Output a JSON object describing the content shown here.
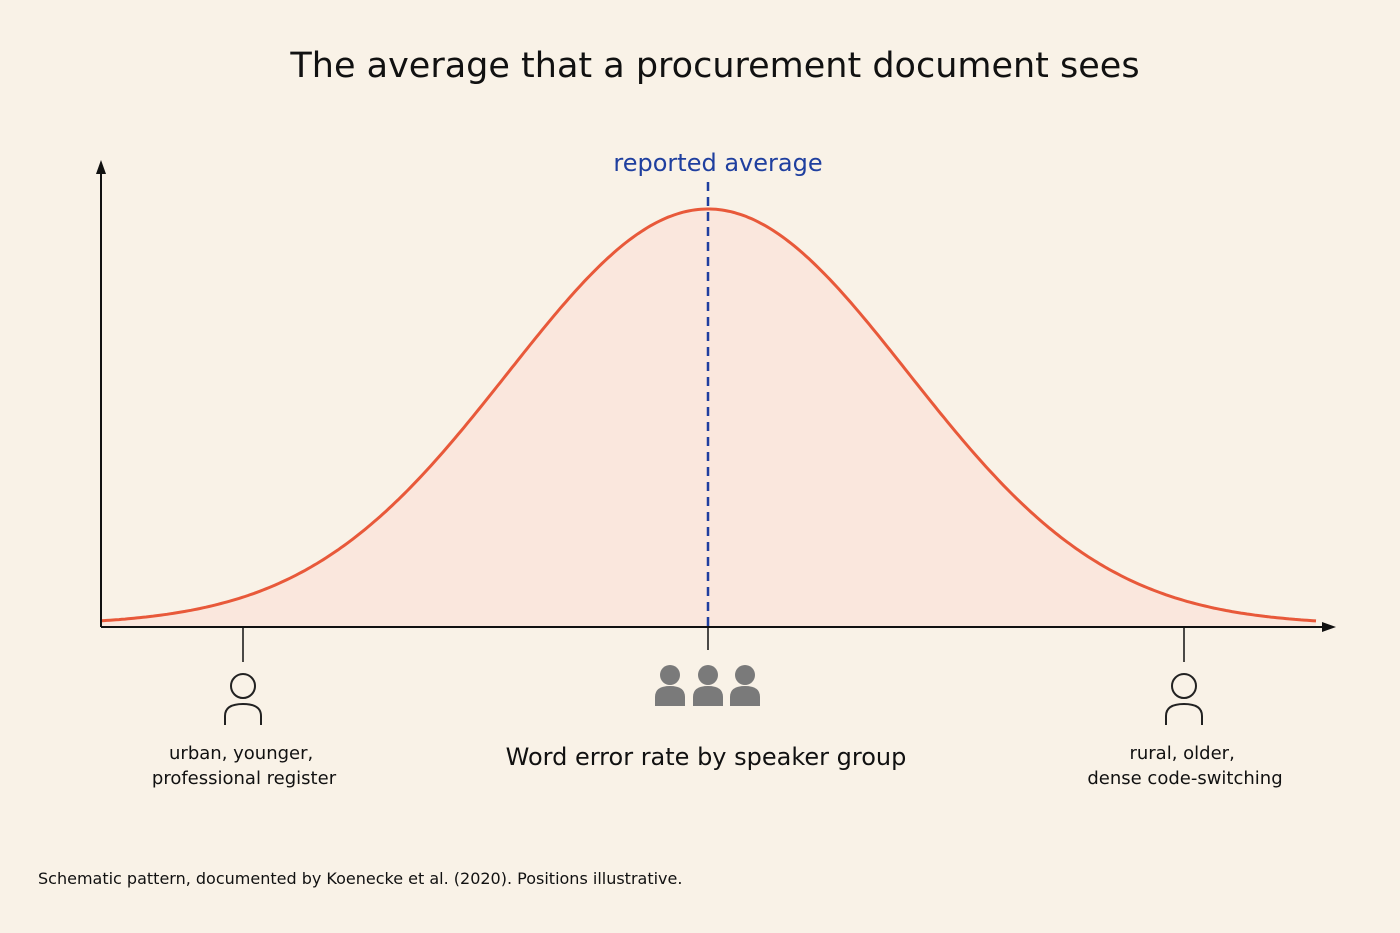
{
  "title": "The average that a procurement document sees",
  "annotation": "reported average",
  "axis_label": "Word error rate by speaker group",
  "groups": [
    {
      "lines": [
        "urban, younger,",
        "professional register"
      ]
    },
    {
      "lines": [
        "rural, older,",
        "dense code-switching"
      ]
    }
  ],
  "footnote": "Schematic pattern, documented by Koenecke et al. (2020). Positions illustrative."
}
